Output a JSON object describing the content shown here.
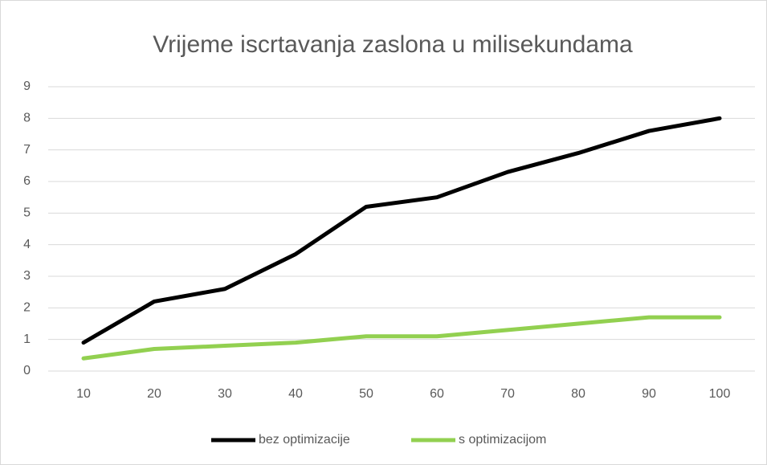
{
  "chart_data": {
    "type": "line",
    "title": "Vrijeme iscrtavanja zaslona u milisekundama",
    "categories": [
      "10",
      "20",
      "30",
      "40",
      "50",
      "60",
      "70",
      "80",
      "90",
      "100"
    ],
    "series": [
      {
        "name": "bez optimizacije",
        "color": "#000000",
        "values": [
          0.9,
          2.2,
          2.6,
          3.7,
          5.2,
          5.5,
          6.3,
          6.9,
          7.6,
          8.0
        ]
      },
      {
        "name": "s optimizacijom",
        "color": "#92d050",
        "values": [
          0.4,
          0.7,
          0.8,
          0.9,
          1.1,
          1.1,
          1.3,
          1.5,
          1.7,
          1.7
        ]
      }
    ],
    "ylim": [
      0,
      9
    ],
    "yticks": [
      0,
      1,
      2,
      3,
      4,
      5,
      6,
      7,
      8,
      9
    ],
    "grid": true,
    "legend": "bottom"
  }
}
